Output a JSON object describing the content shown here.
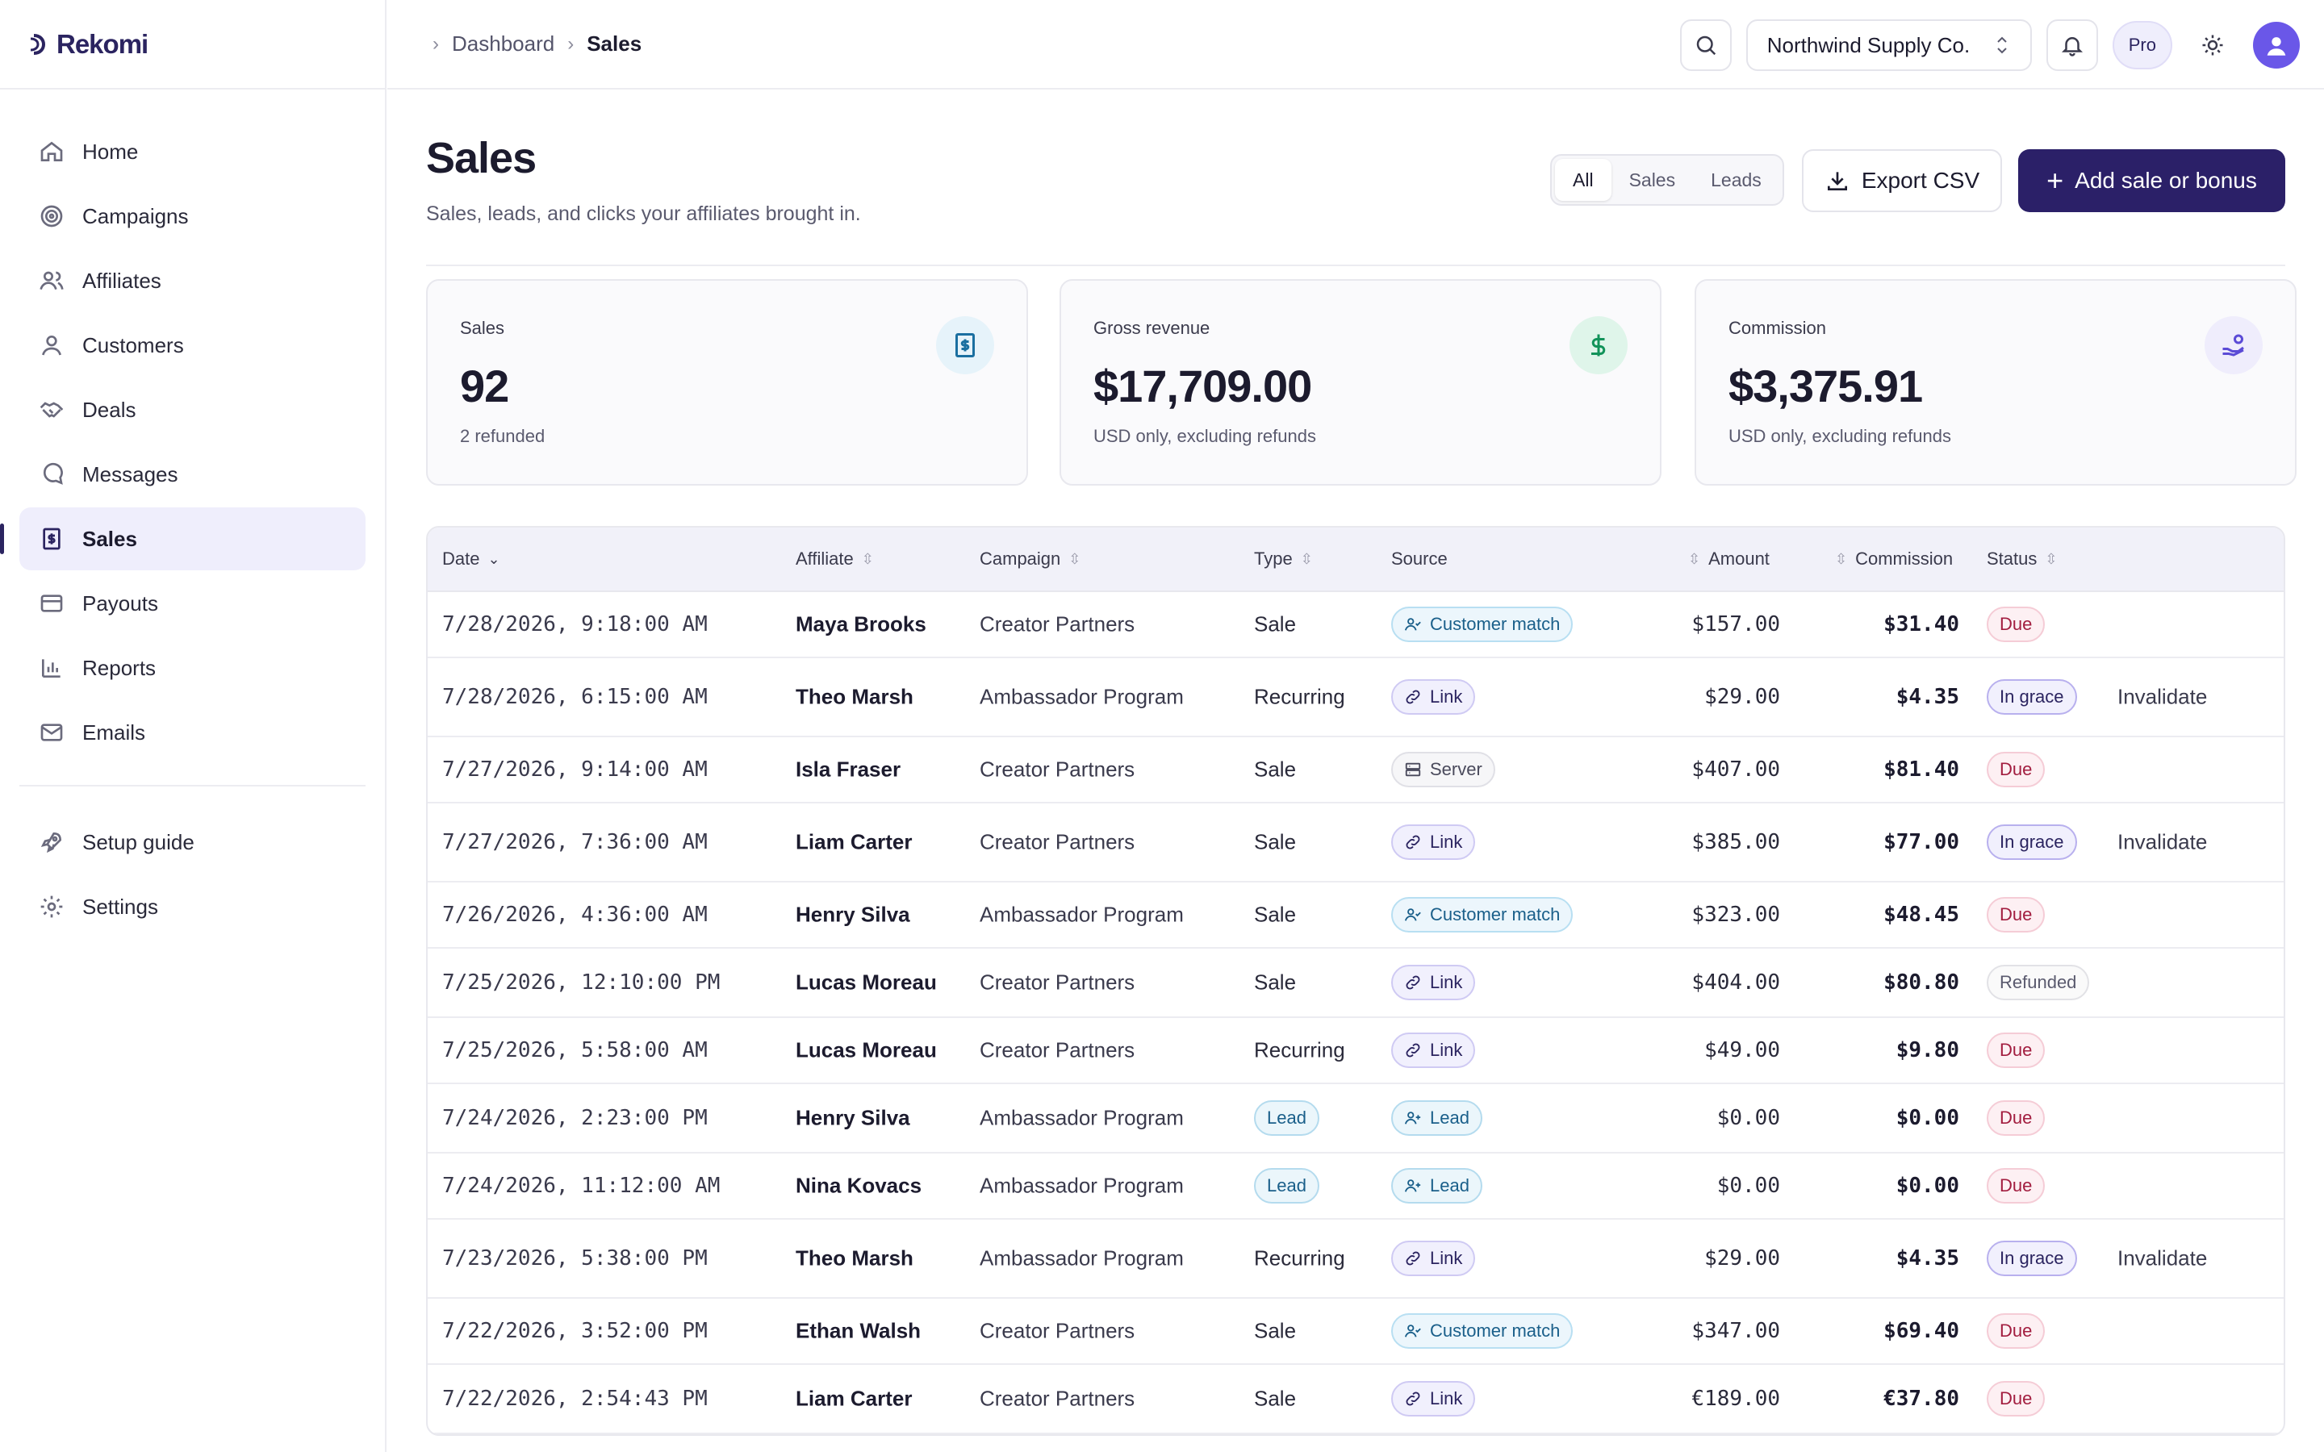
{
  "brand": {
    "name": "Rekomi"
  },
  "sidebar": {
    "items": [
      {
        "label": "Home",
        "icon": "home-icon"
      },
      {
        "label": "Campaigns",
        "icon": "target-icon"
      },
      {
        "label": "Affiliates",
        "icon": "users-icon"
      },
      {
        "label": "Customers",
        "icon": "user-icon"
      },
      {
        "label": "Deals",
        "icon": "handshake-icon"
      },
      {
        "label": "Messages",
        "icon": "message-icon"
      },
      {
        "label": "Sales",
        "icon": "receipt-icon",
        "active": true
      },
      {
        "label": "Payouts",
        "icon": "card-icon"
      },
      {
        "label": "Reports",
        "icon": "chart-icon"
      },
      {
        "label": "Emails",
        "icon": "mail-icon"
      }
    ],
    "secondary": [
      {
        "label": "Setup guide",
        "icon": "rocket-icon"
      },
      {
        "label": "Settings",
        "icon": "gear-icon"
      }
    ]
  },
  "breadcrumb": {
    "parent": "Dashboard",
    "current": "Sales"
  },
  "topbar": {
    "org": "Northwind Supply Co.",
    "plan": "Pro"
  },
  "page": {
    "title": "Sales",
    "subtitle": "Sales, leads, and clicks your affiliates brought in.",
    "filters": [
      "All",
      "Sales",
      "Leads"
    ],
    "active_filter": "All",
    "export_label": "Export CSV",
    "add_label": "Add sale or bonus"
  },
  "stats": [
    {
      "label": "Sales",
      "value": "92",
      "note": "2 refunded",
      "icon": "receipt-icon",
      "color": "#1a6fa0",
      "bg": "#e6f3fa"
    },
    {
      "label": "Gross revenue",
      "value": "$17,709.00",
      "note": "USD only, excluding refunds",
      "icon": "dollar-icon",
      "color": "#12935a",
      "bg": "#dff5ea"
    },
    {
      "label": "Commission",
      "value": "$3,375.91",
      "note": "USD only, excluding refunds",
      "icon": "hand-coins-icon",
      "color": "#5b4bd6",
      "bg": "#efedfc"
    }
  ],
  "table": {
    "columns": {
      "date": "Date",
      "affiliate": "Affiliate",
      "campaign": "Campaign",
      "type": "Type",
      "source": "Source",
      "amount": "Amount",
      "commission": "Commission",
      "status": "Status"
    },
    "rows": [
      {
        "date": "7/28/2026, 9:18:00 AM",
        "affiliate": "Maya Brooks",
        "campaign": "Creator Partners",
        "type": "Sale",
        "source": "Customer match",
        "amount": "$157.00",
        "commission": "$31.40",
        "status": "Due",
        "action": ""
      },
      {
        "date": "7/28/2026, 6:15:00 AM",
        "affiliate": "Theo Marsh",
        "campaign": "Ambassador Program",
        "type": "Recurring",
        "source": "Link",
        "amount": "$29.00",
        "commission": "$4.35",
        "status": "In grace",
        "action": "Invalidate"
      },
      {
        "date": "7/27/2026, 9:14:00 AM",
        "affiliate": "Isla Fraser",
        "campaign": "Creator Partners",
        "type": "Sale",
        "source": "Server",
        "amount": "$407.00",
        "commission": "$81.40",
        "status": "Due",
        "action": ""
      },
      {
        "date": "7/27/2026, 7:36:00 AM",
        "affiliate": "Liam Carter",
        "campaign": "Creator Partners",
        "type": "Sale",
        "source": "Link",
        "amount": "$385.00",
        "commission": "$77.00",
        "status": "In grace",
        "action": "Invalidate"
      },
      {
        "date": "7/26/2026, 4:36:00 AM",
        "affiliate": "Henry Silva",
        "campaign": "Ambassador Program",
        "type": "Sale",
        "source": "Customer match",
        "amount": "$323.00",
        "commission": "$48.45",
        "status": "Due",
        "action": ""
      },
      {
        "date": "7/25/2026, 12:10:00 PM",
        "affiliate": "Lucas Moreau",
        "campaign": "Creator Partners",
        "type": "Sale",
        "source": "Link",
        "amount": "$404.00",
        "commission": "$80.80",
        "status": "Refunded",
        "action": ""
      },
      {
        "date": "7/25/2026, 5:58:00 AM",
        "affiliate": "Lucas Moreau",
        "campaign": "Creator Partners",
        "type": "Recurring",
        "source": "Link",
        "amount": "$49.00",
        "commission": "$9.80",
        "status": "Due",
        "action": ""
      },
      {
        "date": "7/24/2026, 2:23:00 PM",
        "affiliate": "Henry Silva",
        "campaign": "Ambassador Program",
        "type": "Lead",
        "source": "Lead",
        "amount": "$0.00",
        "commission": "$0.00",
        "status": "Due",
        "action": ""
      },
      {
        "date": "7/24/2026, 11:12:00 AM",
        "affiliate": "Nina Kovacs",
        "campaign": "Ambassador Program",
        "type": "Lead",
        "source": "Lead",
        "amount": "$0.00",
        "commission": "$0.00",
        "status": "Due",
        "action": ""
      },
      {
        "date": "7/23/2026, 5:38:00 PM",
        "affiliate": "Theo Marsh",
        "campaign": "Ambassador Program",
        "type": "Recurring",
        "source": "Link",
        "amount": "$29.00",
        "commission": "$4.35",
        "status": "In grace",
        "action": "Invalidate"
      },
      {
        "date": "7/22/2026, 3:52:00 PM",
        "affiliate": "Ethan Walsh",
        "campaign": "Creator Partners",
        "type": "Sale",
        "source": "Customer match",
        "amount": "$347.00",
        "commission": "$69.40",
        "status": "Due",
        "action": ""
      },
      {
        "date": "7/22/2026, 2:54:43 PM",
        "affiliate": "Liam Carter",
        "campaign": "Creator Partners",
        "type": "Sale",
        "source": "Link",
        "amount": "€189.00",
        "commission": "€37.80",
        "status": "Due",
        "action": ""
      }
    ]
  }
}
